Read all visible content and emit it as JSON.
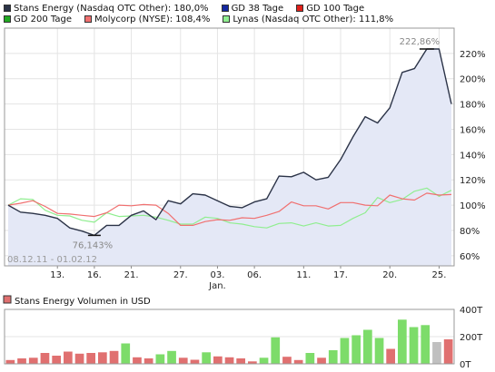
{
  "legend": {
    "row1": [
      {
        "label": "Stans Energy (Nasdaq OTC Other): 180,0%",
        "color": "#2b3347"
      },
      {
        "label": "GD 38 Tage",
        "color": "#1428a0"
      },
      {
        "label": "GD 100 Tage",
        "color": "#e0201a"
      }
    ],
    "row2": [
      {
        "label": "GD 200 Tage",
        "color": "#22aa22"
      },
      {
        "label": "Molycorp (NYSE): 108,4%",
        "color": "#f07070"
      },
      {
        "label": "Lynas (Nasdaq OTC Other): 111,8%",
        "color": "#90ee90"
      }
    ]
  },
  "chart_data": [
    {
      "type": "line",
      "y_unit": "%",
      "ylim": [
        52,
        240
      ],
      "y_ticks": [
        60,
        80,
        100,
        120,
        140,
        160,
        180,
        200,
        220
      ],
      "y_tick_labels": [
        "60%",
        "80%",
        "100%",
        "120%",
        "140%",
        "160%",
        "180%",
        "200%",
        "220%"
      ],
      "x_tick_labels": [
        "13.",
        "16.",
        "21.",
        "27.",
        "03.",
        "06.",
        "11.",
        "17.",
        "20.",
        "25."
      ],
      "x_tick_index": [
        4,
        7,
        10,
        14,
        17,
        20,
        24,
        27,
        31,
        35
      ],
      "x_sublabel": "Jan.",
      "x_sublabel_index": 17,
      "date_range": "08.12.11 - 01.02.12",
      "annotations": {
        "max_label": "222,86%",
        "min_label": "76,143%"
      },
      "grid": true,
      "series": [
        {
          "name": "Stans Energy (Nasdaq OTC Other): 180,0%",
          "color": "#2b3347",
          "fill": "#e4e8f6",
          "values": [
            100,
            94.5,
            93.5,
            92,
            89.5,
            82,
            79.5,
            76.1,
            84,
            84,
            92,
            95.5,
            88.5,
            103.5,
            101,
            109,
            108,
            103.5,
            99,
            98,
            102.5,
            105,
            123,
            122.5,
            126,
            120,
            122,
            136,
            154,
            170,
            165,
            177,
            205,
            208,
            223.5,
            223.5,
            180
          ]
        },
        {
          "name": "Molycorp (NYSE): 108,4%",
          "color": "#f07070",
          "values": [
            100,
            101.5,
            103.5,
            99,
            93.5,
            93,
            92,
            91,
            94,
            100,
            99.5,
            100.5,
            100,
            93.5,
            84,
            84,
            87,
            88.5,
            88,
            90,
            89.5,
            92,
            95,
            102.5,
            99.5,
            99.5,
            97,
            102,
            102,
            100,
            99.5,
            108,
            105,
            104,
            109.5,
            108,
            108.4
          ]
        },
        {
          "name": "Lynas (Nasdaq OTC Other): 111,8%",
          "color": "#90ee90",
          "values": [
            100,
            105,
            104.5,
            96,
            92,
            91.5,
            88,
            86.5,
            94,
            91,
            91.5,
            92,
            90.5,
            88,
            85,
            85,
            90.5,
            89.5,
            86,
            85,
            83,
            82,
            85.5,
            86,
            83.5,
            86,
            83.5,
            84,
            89.5,
            94,
            106,
            102,
            104.5,
            111,
            113.5,
            107,
            111.8
          ]
        }
      ]
    },
    {
      "type": "bar",
      "title": "Stans Energy Volumen in USD",
      "y_unit": "USD",
      "ylim": [
        0,
        400
      ],
      "y_ticks": [
        0,
        200,
        400
      ],
      "y_tick_labels": [
        "0T",
        "200T",
        "400T"
      ],
      "values": [
        28,
        40,
        45,
        80,
        60,
        90,
        75,
        80,
        85,
        95,
        150,
        48,
        40,
        70,
        95,
        45,
        30,
        85,
        55,
        48,
        40,
        18,
        45,
        195,
        52,
        28,
        80,
        45,
        100,
        190,
        210,
        250,
        190,
        110,
        325,
        270,
        285,
        160,
        180
      ],
      "colors": [
        "#e07070",
        "#e07070",
        "#e07070",
        "#e07070",
        "#e07070",
        "#e07070",
        "#e07070",
        "#e07070",
        "#e07070",
        "#e07070",
        "#7ddc6a",
        "#e07070",
        "#e07070",
        "#7ddc6a",
        "#7ddc6a",
        "#e07070",
        "#e07070",
        "#7ddc6a",
        "#e07070",
        "#e07070",
        "#e07070",
        "#e07070",
        "#7ddc6a",
        "#7ddc6a",
        "#e07070",
        "#e07070",
        "#7ddc6a",
        "#e07070",
        "#7ddc6a",
        "#7ddc6a",
        "#7ddc6a",
        "#7ddc6a",
        "#7ddc6a",
        "#e07070",
        "#7ddc6a",
        "#7ddc6a",
        "#7ddc6a",
        "#c0c0c0",
        "#e07070"
      ]
    }
  ]
}
